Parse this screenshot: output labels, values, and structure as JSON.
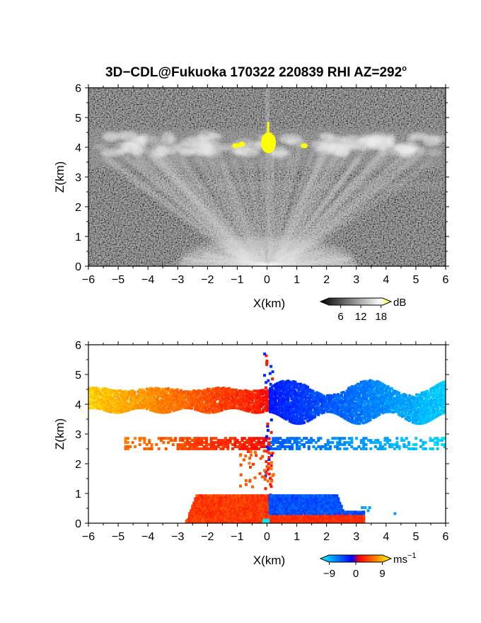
{
  "title": "3D−CDL@Fukuoka 170322 220839 RHI AZ=292",
  "title_degree": "o",
  "chart_data": [
    {
      "type": "heatmap",
      "quantity": "backscatter intensity",
      "xlabel": "X(km)",
      "ylabel": "Z(km)",
      "xlim": [
        -6,
        6
      ],
      "ylim": [
        0,
        6
      ],
      "xticks": [
        -6,
        -5,
        -4,
        -3,
        -2,
        -1,
        0,
        1,
        2,
        3,
        4,
        5,
        6
      ],
      "yticks": [
        0,
        1,
        2,
        3,
        4,
        5,
        6
      ],
      "colorbar": {
        "unit": "dB",
        "ticks": [
          "6",
          "12",
          "18"
        ],
        "range": [
          0,
          21
        ],
        "colors": [
          "#000000",
          "#ffffff",
          "#ffff00"
        ]
      },
      "features": [
        {
          "name": "cloud layer",
          "z_range": [
            3.3,
            4.6
          ],
          "x_range": [
            -6,
            6
          ]
        },
        {
          "name": "bright core",
          "x_range": [
            -0.2,
            0.3
          ],
          "z_range": [
            3.8,
            5.2
          ]
        },
        {
          "name": "near-surface bright layer",
          "x_range": [
            -3,
            3
          ],
          "z_range": [
            0,
            0.9
          ]
        }
      ]
    },
    {
      "type": "heatmap",
      "quantity": "Doppler velocity",
      "xlabel": "X(km)",
      "ylabel": "Z(km)",
      "xlim": [
        -6,
        6
      ],
      "ylim": [
        0,
        6
      ],
      "xticks": [
        -6,
        -5,
        -4,
        -3,
        -2,
        -1,
        0,
        1,
        2,
        3,
        4,
        5,
        6
      ],
      "yticks": [
        0,
        1,
        2,
        3,
        4,
        5,
        6
      ],
      "colorbar": {
        "unit": "ms",
        "unit_exponent": "−1",
        "ticks": [
          "−9",
          "0",
          "9"
        ],
        "range": [
          -12,
          12
        ],
        "colors": [
          "#00ffff",
          "#0000ff",
          "#ff0000",
          "#ffff00"
        ]
      },
      "features": [
        {
          "name": "upper layer negative x",
          "x_range": [
            -6,
            0
          ],
          "z_range": [
            3.8,
            4.6
          ],
          "velocity_range": [
            3,
            10
          ]
        },
        {
          "name": "upper layer positive x",
          "x_range": [
            0,
            6
          ],
          "z_range": [
            3.4,
            5.0
          ],
          "velocity_range": [
            -10,
            -3
          ]
        },
        {
          "name": "mid layer",
          "x_range": [
            -4.8,
            6
          ],
          "z_range": [
            2.5,
            2.9
          ]
        },
        {
          "name": "low layer",
          "x_range": [
            -3.1,
            4.5
          ],
          "z_range": [
            0,
            1.0
          ]
        }
      ]
    }
  ]
}
